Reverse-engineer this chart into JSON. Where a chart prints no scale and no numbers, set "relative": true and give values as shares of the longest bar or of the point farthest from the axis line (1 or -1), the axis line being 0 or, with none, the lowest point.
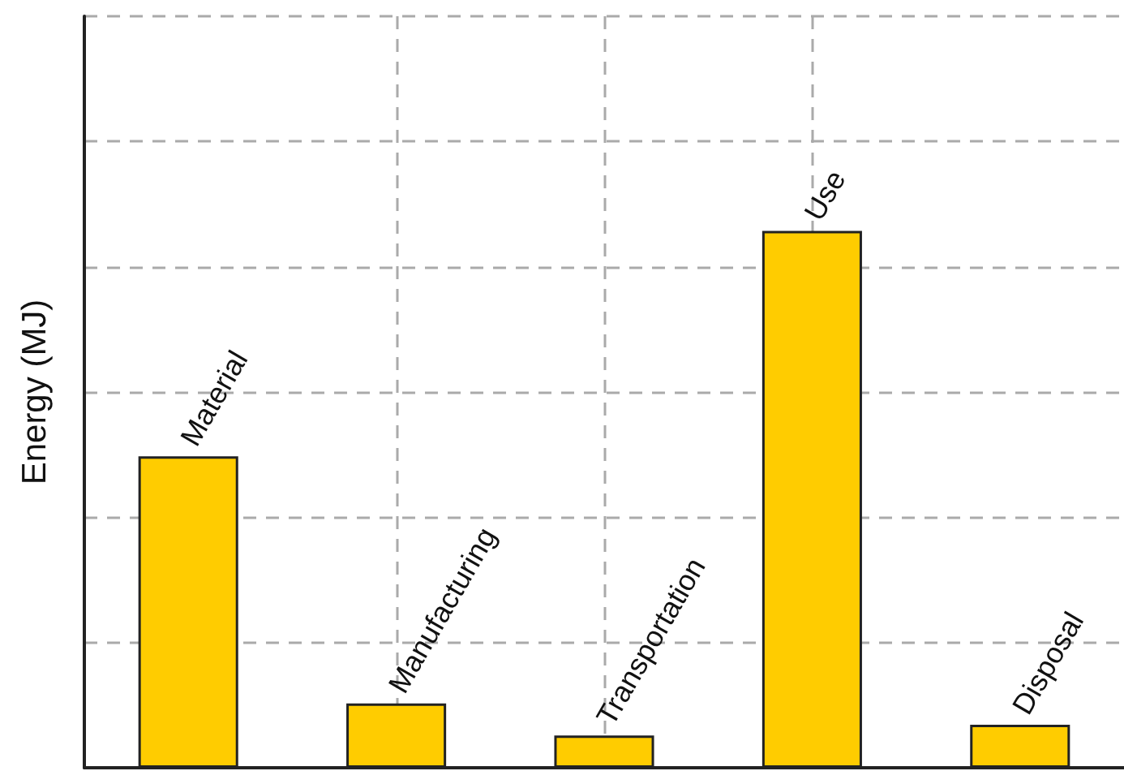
{
  "chart_data": {
    "type": "bar",
    "ylabel": "Energy (MJ)",
    "relative": true,
    "categories": [
      "Material",
      "Manufacturing",
      "Transportation",
      "Use",
      "Disposal"
    ],
    "values": [
      0.58,
      0.12,
      0.06,
      1,
      0.08
    ],
    "color": "#ffcc00",
    "grid": true,
    "tick_labels": false,
    "data_labels": false
  }
}
